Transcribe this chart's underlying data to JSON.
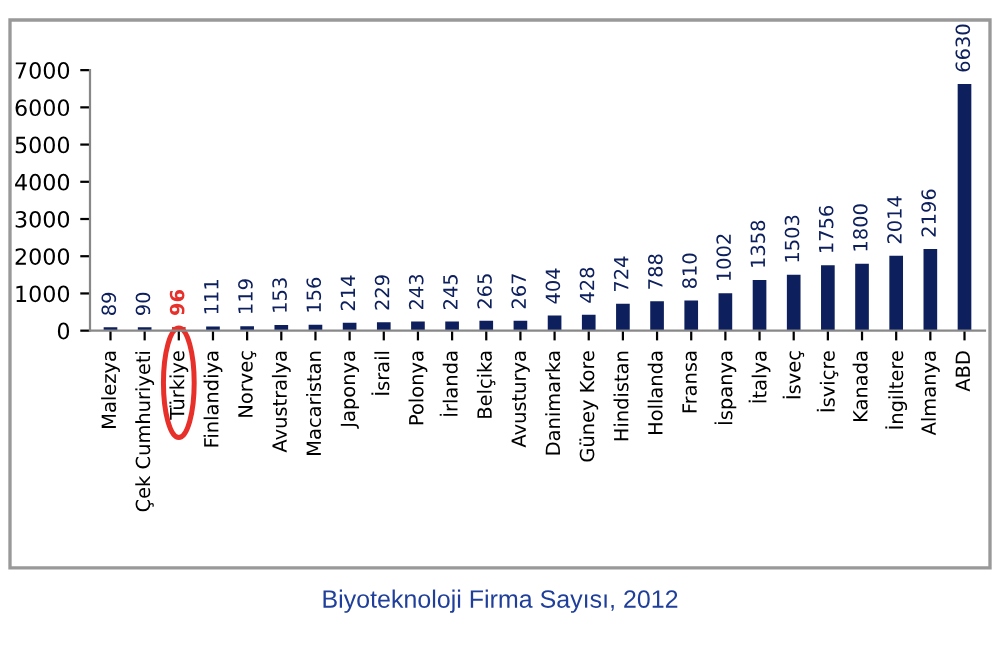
{
  "chart_data": {
    "type": "bar",
    "title": "Biyoteknoloji Firma Sayısı, 2012",
    "categories": [
      "Malezya",
      "Çek Cumhuriyeti",
      "Türkiye",
      "Finlandiya",
      "Norveç",
      "Avustralya",
      "Macaristan",
      "Japonya",
      "İsrail",
      "Polonya",
      "İrlanda",
      "Belçika",
      "Avusturya",
      "Danimarka",
      "Güney Kore",
      "Hindistan",
      "Hollanda",
      "Fransa",
      "İspanya",
      "İtalya",
      "İsveç",
      "İsviçre",
      "Kanada",
      "İngiltere",
      "Almanya",
      "ABD"
    ],
    "values": [
      89,
      90,
      96,
      111,
      119,
      153,
      156,
      214,
      229,
      243,
      245,
      265,
      267,
      404,
      428,
      724,
      788,
      810,
      1002,
      1358,
      1503,
      1756,
      1800,
      2014,
      2196,
      6630
    ],
    "colors": [
      "#0d1f5c",
      "#0d1f5c",
      "#e8302a",
      "#0d1f5c",
      "#0d1f5c",
      "#0d1f5c",
      "#0d1f5c",
      "#0d1f5c",
      "#0d1f5c",
      "#0d1f5c",
      "#0d1f5c",
      "#0d1f5c",
      "#0d1f5c",
      "#0d1f5c",
      "#0d1f5c",
      "#0d1f5c",
      "#0d1f5c",
      "#0d1f5c",
      "#0d1f5c",
      "#0d1f5c",
      "#0d1f5c",
      "#0d1f5c",
      "#0d1f5c",
      "#0d1f5c",
      "#0d1f5c",
      "#0d1f5c"
    ],
    "ylim": [
      0,
      7000
    ],
    "yticks": [
      0,
      1000,
      2000,
      3000,
      4000,
      5000,
      6000,
      7000
    ],
    "grid": false,
    "data_labels": true
  }
}
